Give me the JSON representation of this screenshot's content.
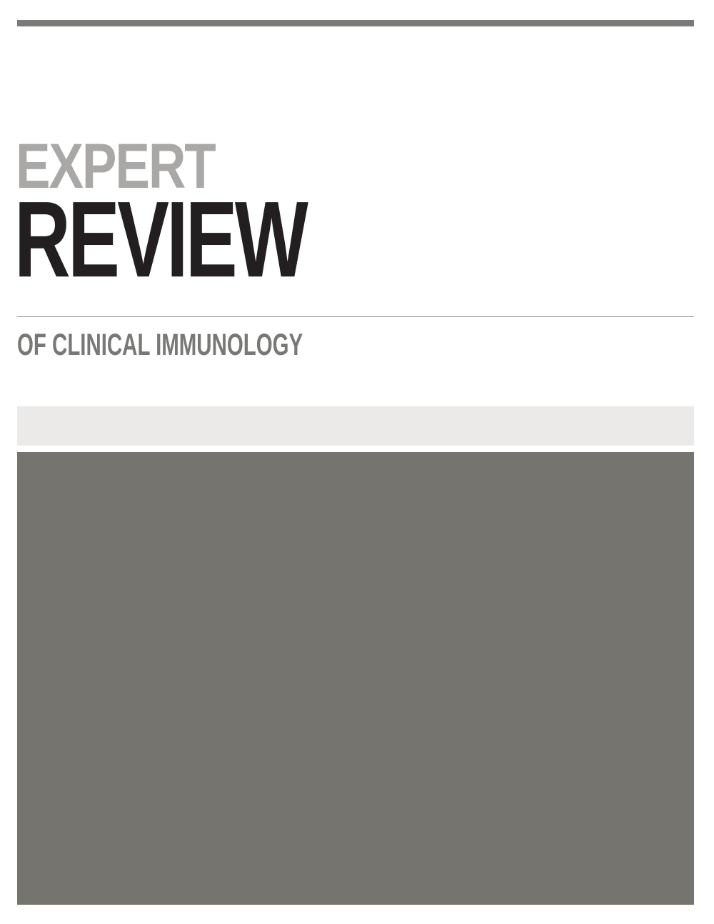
{
  "cover": {
    "title_line_1": "EXPERT",
    "title_line_2": "REVIEW",
    "subtitle": "OF CLINICAL IMMUNOLOGY"
  },
  "colors": {
    "top_bar": "#7a7a78",
    "title_line_1": "#a9a8a6",
    "title_line_2": "#231f20",
    "subtitle": "#797876",
    "band": "#ebeae8",
    "image_block": "#75746f"
  }
}
